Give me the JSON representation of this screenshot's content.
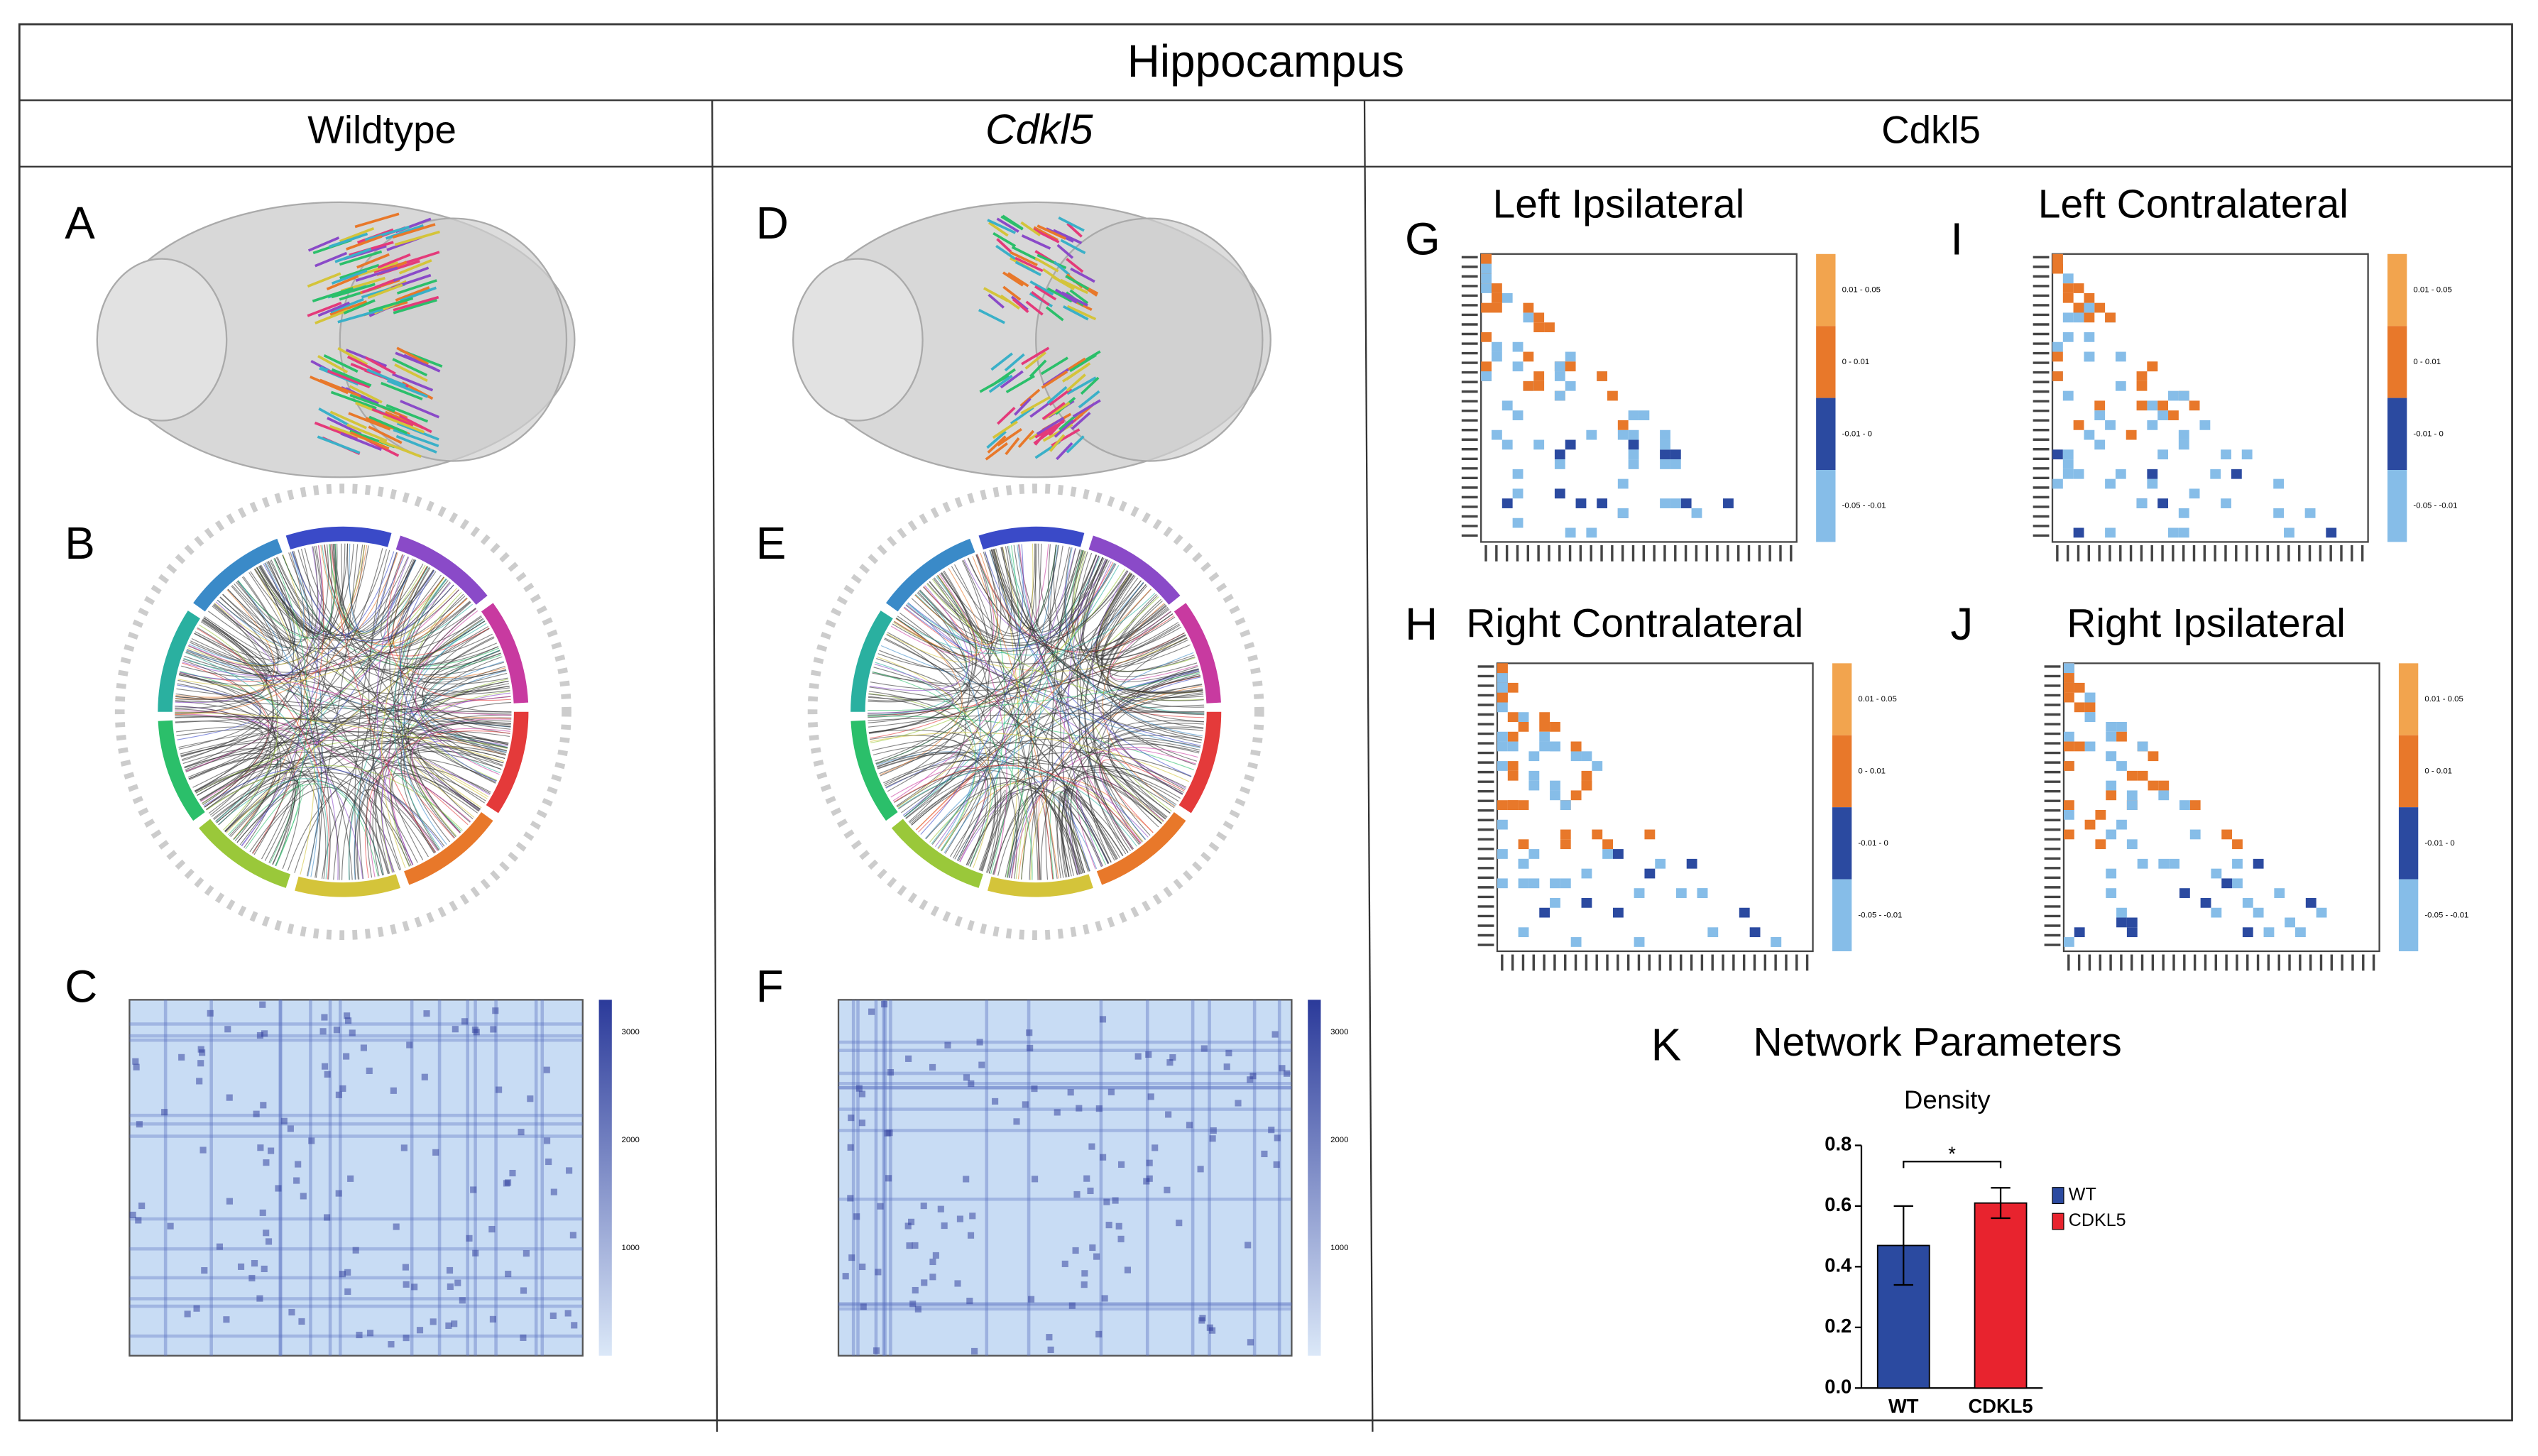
{
  "header": {
    "title": "Hippocampus",
    "columns": [
      "Wildtype",
      "Cdkl5",
      "Cdkl5"
    ]
  },
  "panels": {
    "letters": [
      "A",
      "B",
      "C",
      "D",
      "E",
      "F",
      "G",
      "I",
      "H",
      "J",
      "K"
    ],
    "matrix_titles": [
      "Left Ipsilateral",
      "Left Contralateral",
      "Right Contralateral",
      "Right Ipsilateral"
    ],
    "matrix_legend": [
      "0.01 - 0.05",
      "0 - 0.01",
      "-0.01 - 0",
      "-0.05 - -0.01"
    ],
    "heatmap_colorbar": [
      3000,
      2000,
      1000
    ],
    "network_title": "Network Parameters"
  },
  "chart_data": {
    "type": "bar",
    "title": "Density",
    "categories": [
      "WT",
      "CDKL5"
    ],
    "series": [
      {
        "name": "WT",
        "color": "#2b4aa0"
      },
      {
        "name": "CDKL5",
        "color": "#e8232e"
      }
    ],
    "values": [
      0.47,
      0.61
    ],
    "errors": [
      0.13,
      0.05
    ],
    "significance": "*",
    "ylim": [
      0,
      0.8
    ],
    "yticks": [
      {
        "value": 0,
        "label": "0.0"
      },
      0.2,
      0.4,
      0.6,
      0.8
    ]
  }
}
